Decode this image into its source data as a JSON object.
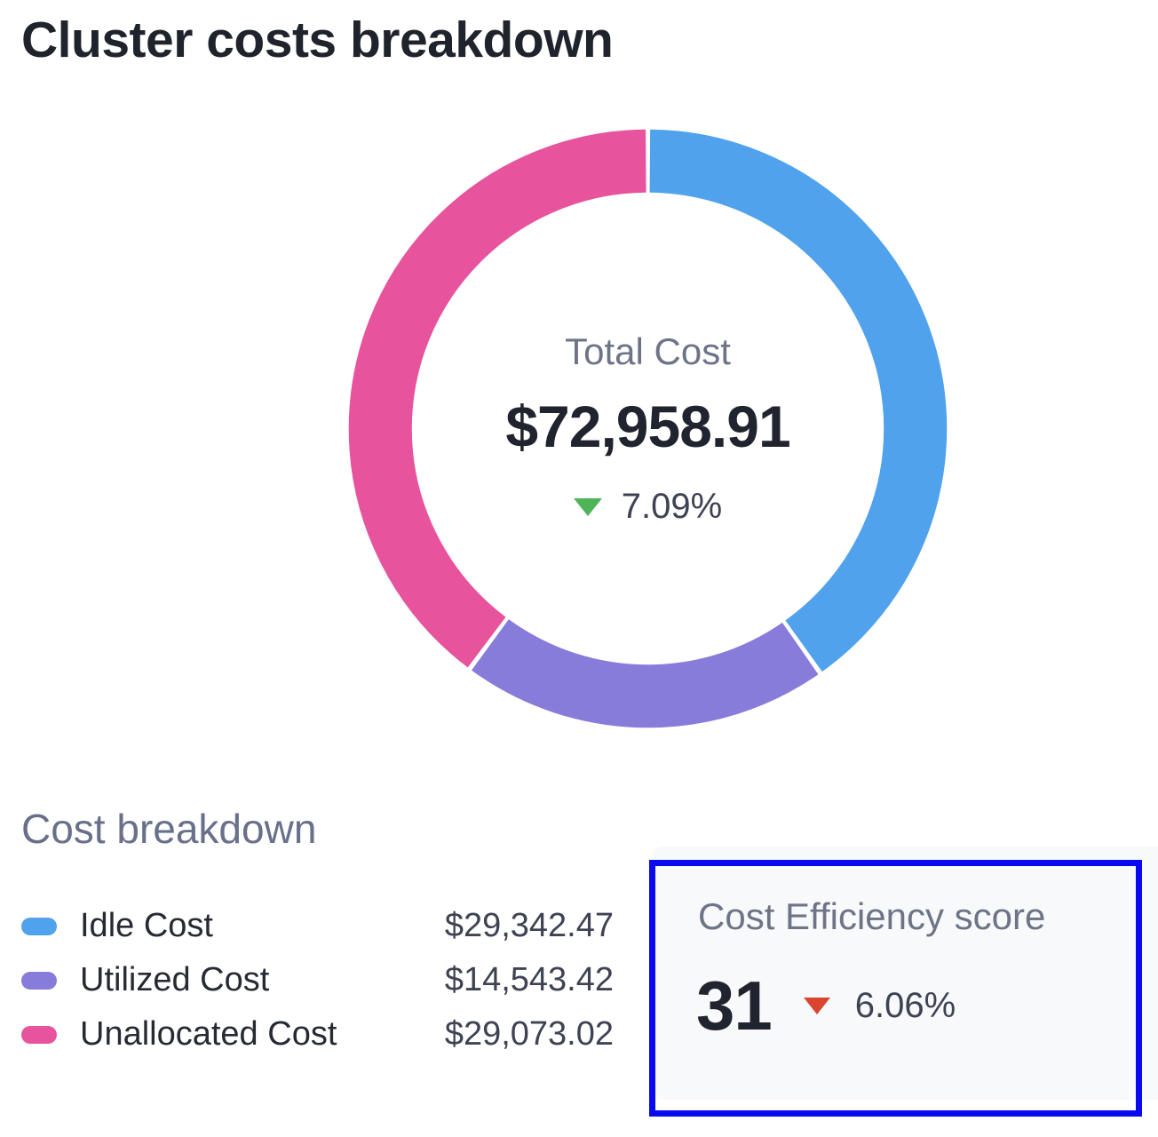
{
  "page": {
    "title": "Cluster costs breakdown"
  },
  "chart_data": {
    "type": "pie",
    "subtype": "donut",
    "title": "Cluster costs breakdown",
    "direction": "clockwise",
    "start_angle_deg": 0,
    "total": 72958.91,
    "series": [
      {
        "name": "Idle Cost",
        "value": 29342.47,
        "display": "$29,342.47",
        "color": "#51a2ec"
      },
      {
        "name": "Utilized Cost",
        "value": 14543.42,
        "display": "$14,543.42",
        "color": "#887cda"
      },
      {
        "name": "Unallocated Cost",
        "value": 29073.02,
        "display": "$29,073.02",
        "color": "#e7539c"
      }
    ],
    "center": {
      "label": "Total Cost",
      "value": "$72,958.91",
      "delta_pct": "7.09%",
      "delta_direction": "down",
      "delta_color": "#4eb457"
    },
    "legend_position": "bottom-left"
  },
  "breakdown": {
    "heading": "Cost breakdown"
  },
  "efficiency": {
    "label": "Cost Efficiency score",
    "score": "31",
    "delta_pct": "6.06%",
    "delta_direction": "down",
    "delta_color": "#d9452f",
    "card_background": "#f8f9fb",
    "highlight_border_color": "#0a0af0"
  }
}
